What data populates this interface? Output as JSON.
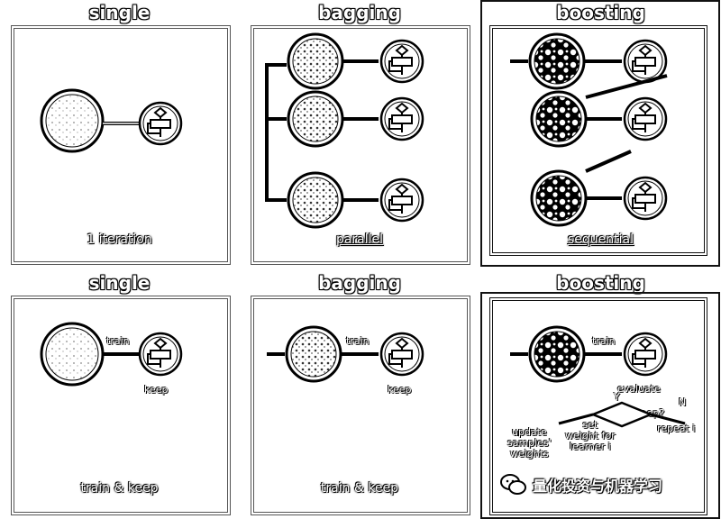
{
  "panels": {
    "single_top": {
      "title": "single",
      "caption": "1 iteration"
    },
    "bagging_top": {
      "title": "bagging",
      "caption": "parallel"
    },
    "boosting_top": {
      "title": "boosting",
      "caption": "sequential"
    },
    "single_bottom": {
      "title": "single",
      "caption": "train & keep",
      "label_train": "train",
      "label_keep": "keep"
    },
    "bagging_bottom": {
      "title": "bagging",
      "caption": "train & keep",
      "label_train": "train",
      "label_keep": "keep"
    },
    "boosting_bottom": {
      "title": "boosting",
      "label_train": "train",
      "label_evaluate": "evaluate",
      "label_keep_q": "keep?",
      "label_n": "N",
      "label_y": "Y",
      "label_repeat": "repeat i",
      "label_update": "update\nsamples'\nweights",
      "label_set": "set\nweight for\nlearner i"
    }
  },
  "watermark": {
    "text": "量化投资与机器学习",
    "icon": "wechat-icon"
  },
  "colors": {
    "frame": "#555555",
    "frame_dark": "#111111",
    "ink": "#000000"
  }
}
